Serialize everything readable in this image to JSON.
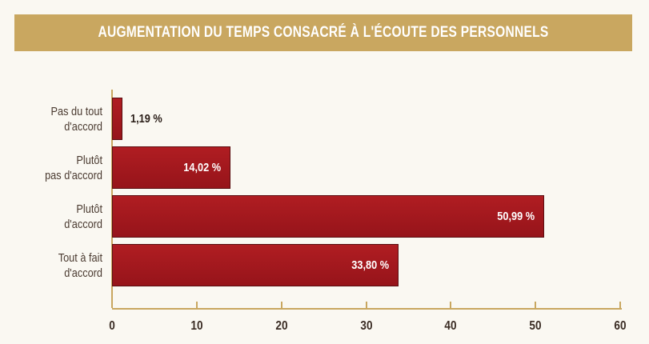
{
  "chart_data": {
    "type": "hbar",
    "title": "AUGMENTATION DU TEMPS CONSACRÉ À L'ÉCOUTE DES PERSONNELS",
    "categories": [
      "Pas du tout\nd'accord",
      "Plutôt\npas d'accord",
      "Plutôt\nd'accord",
      "Tout à fait\nd'accord"
    ],
    "values": [
      1.19,
      14.02,
      50.99,
      33.8
    ],
    "value_labels": [
      "1,19 %",
      "14,02 %",
      "50,99 %",
      "33,80 %"
    ],
    "color": "#a3181d",
    "xlim": [
      0,
      60
    ],
    "xticks": [
      0,
      10,
      20,
      30,
      40,
      50,
      60
    ]
  }
}
